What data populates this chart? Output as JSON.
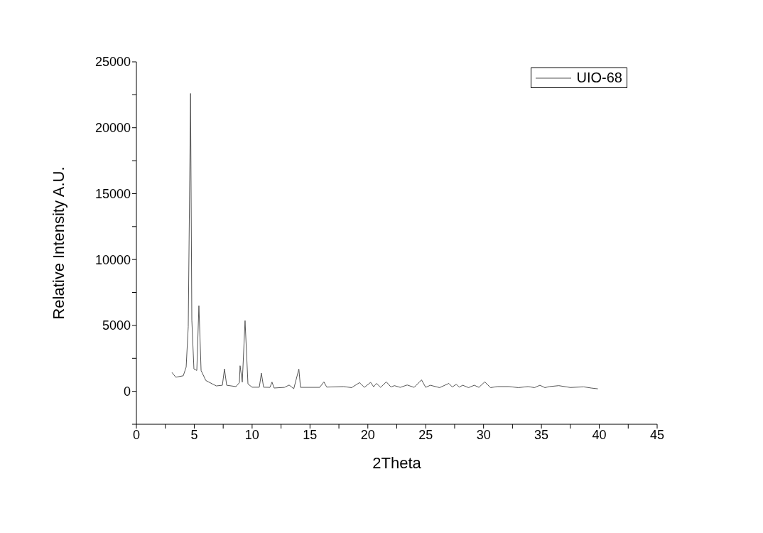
{
  "chart_data": {
    "type": "line",
    "xlabel": "2Theta",
    "ylabel": "Relative Intensity A.U.",
    "legend": "top right",
    "grid": false,
    "marker": "none",
    "line_style": "solid",
    "xlim": [
      0,
      45
    ],
    "ylim": [
      -2500,
      25000
    ],
    "xticks": [
      0,
      {
        "value": 2.5,
        "label": null
      },
      5,
      {
        "value": 7.5,
        "label": null
      },
      10,
      {
        "value": 12.5,
        "label": null
      },
      15,
      {
        "value": 17.5,
        "label": null
      },
      20,
      {
        "value": 22.5,
        "label": null
      },
      25,
      {
        "value": 27.5,
        "label": null
      },
      30,
      {
        "value": 32.5,
        "label": null
      },
      35,
      {
        "value": 37.5,
        "label": null
      },
      40,
      {
        "value": 42.5,
        "label": null
      },
      45
    ],
    "yticks": [
      {
        "value": -2500,
        "label": null
      },
      0,
      {
        "value": 2500,
        "label": null
      },
      5000,
      {
        "value": 7500,
        "label": null
      },
      10000,
      {
        "value": 12500,
        "label": null
      },
      15000,
      {
        "value": 17500,
        "label": null
      },
      20000,
      {
        "value": 22500,
        "label": null
      },
      25000
    ],
    "series": [
      {
        "name": "UIO-68",
        "color": "#555555",
        "x": [
          3.07,
          3.4,
          4.05,
          4.3,
          4.48,
          4.68,
          4.79,
          4.97,
          5.22,
          5.4,
          5.59,
          6.0,
          6.9,
          7.43,
          7.61,
          7.8,
          8.6,
          8.9,
          8.96,
          9.15,
          9.39,
          9.64,
          10.0,
          10.62,
          10.8,
          10.99,
          11.54,
          11.72,
          11.9,
          12.8,
          13.2,
          13.6,
          14.04,
          14.18,
          15.84,
          16.2,
          16.45,
          17.9,
          18.6,
          19.28,
          19.7,
          20.24,
          20.5,
          20.75,
          21.1,
          21.6,
          22.0,
          22.3,
          22.8,
          23.4,
          24.0,
          24.64,
          25.0,
          25.4,
          26.2,
          27.0,
          27.3,
          27.64,
          27.9,
          28.2,
          28.7,
          29.2,
          29.6,
          30.1,
          30.6,
          31.2,
          32.2,
          33.0,
          33.85,
          34.4,
          34.87,
          35.3,
          35.7,
          36.5,
          37.5,
          38.65,
          39.3,
          39.88
        ],
        "values": [
          1430,
          1070,
          1180,
          1840,
          4900,
          22600,
          5400,
          1700,
          1580,
          6500,
          1580,
          820,
          410,
          460,
          1700,
          460,
          360,
          660,
          1940,
          700,
          5370,
          560,
          310,
          310,
          1380,
          310,
          300,
          700,
          250,
          300,
          475,
          200,
          1690,
          300,
          300,
          715,
          320,
          360,
          280,
          660,
          300,
          680,
          350,
          600,
          300,
          715,
          330,
          430,
          300,
          480,
          300,
          870,
          300,
          460,
          280,
          600,
          330,
          530,
          320,
          460,
          280,
          460,
          300,
          715,
          280,
          360,
          360,
          280,
          360,
          280,
          460,
          280,
          360,
          430,
          290,
          340,
          250,
          190
        ]
      }
    ]
  }
}
